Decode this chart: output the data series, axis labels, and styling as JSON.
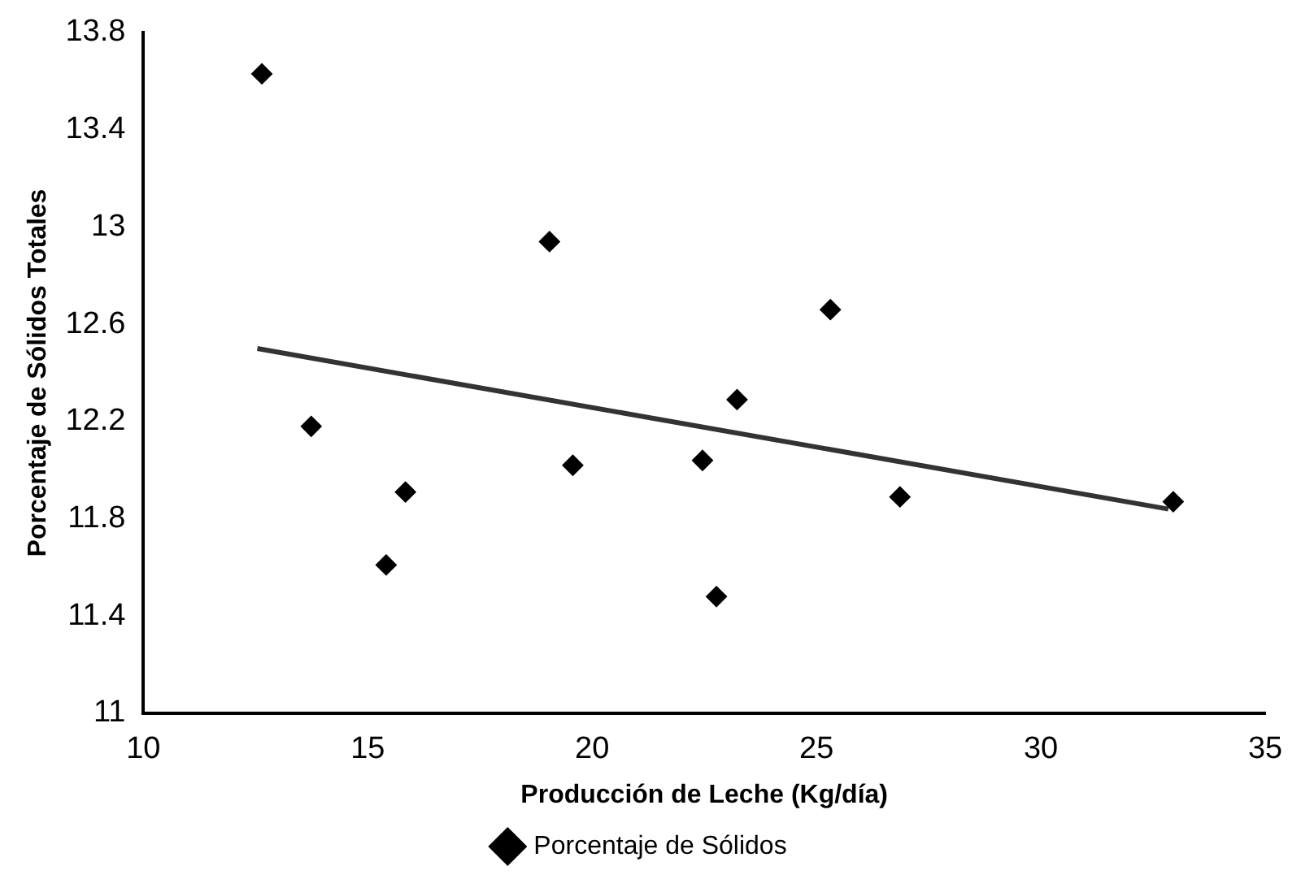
{
  "chart_data": {
    "type": "scatter",
    "xlabel": "Producción de Leche (Kg/día)",
    "ylabel": "Porcentaje de Sólidos Totales",
    "xlim": [
      10,
      35
    ],
    "xticks": [
      10,
      15,
      20,
      25,
      30,
      35
    ],
    "ylim": [
      11,
      13.8
    ],
    "yticks": [
      11,
      11.4,
      11.8,
      12.2,
      12.6,
      13,
      13.4,
      13.8
    ],
    "grid": false,
    "legend": "bottom",
    "marker": "diamond",
    "series": [
      {
        "name": "Porcentaje de Sólidos",
        "color": "#000000",
        "x": [
          12.64,
          13.74,
          15.41,
          15.84,
          19.05,
          19.57,
          22.46,
          22.77,
          23.23,
          25.31,
          26.86,
          32.95
        ],
        "values": [
          13.63,
          12.18,
          11.61,
          11.91,
          12.94,
          12.02,
          12.04,
          11.48,
          12.29,
          12.66,
          11.89,
          11.87
        ]
      },
      {
        "type": "line",
        "color": "#333333",
        "x": [
          12.54,
          32.84
        ],
        "values": [
          12.5,
          11.84
        ],
        "marker": "none"
      }
    ]
  }
}
